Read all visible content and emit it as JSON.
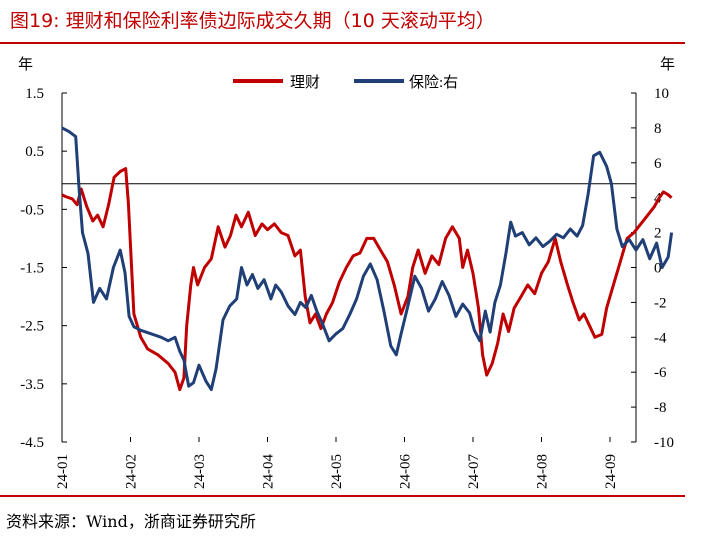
{
  "figure": {
    "title": "图19:  理财和保险利率债边际成交久期（10 天滚动平均）",
    "source": "资料来源：Wind，浙商证券研究所"
  },
  "chart_data": {
    "type": "line",
    "y_left_unit": "年",
    "y_right_unit": "年",
    "y_left_ticks": [
      "1.5",
      "0.5",
      "-0.5",
      "-1.5",
      "-2.5",
      "-3.5",
      "-4.5"
    ],
    "y_right_ticks": [
      "10",
      "8",
      "6",
      "4",
      "2",
      "0",
      "-2",
      "-4",
      "-6",
      "-8",
      "-10"
    ],
    "ylim_left": [
      -4.5,
      1.5
    ],
    "ylim_right": [
      -10,
      10
    ],
    "x_ticks": [
      "24-01",
      "24-02",
      "24-03",
      "24-04",
      "24-05",
      "24-06",
      "24-07",
      "24-08",
      "24-09"
    ],
    "legend_position": "top-center",
    "series": [
      {
        "name": "理财",
        "axis": "left",
        "color": "#c00000",
        "points": [
          [
            0.0,
            -0.25
          ],
          [
            0.05,
            -0.28
          ],
          [
            0.15,
            -0.32
          ],
          [
            0.22,
            -0.42
          ],
          [
            0.28,
            -0.15
          ],
          [
            0.36,
            -0.45
          ],
          [
            0.45,
            -0.7
          ],
          [
            0.52,
            -0.6
          ],
          [
            0.6,
            -0.8
          ],
          [
            0.68,
            -0.42
          ],
          [
            0.76,
            0.05
          ],
          [
            0.85,
            0.15
          ],
          [
            0.93,
            0.2
          ],
          [
            0.97,
            -0.4
          ],
          [
            1.05,
            -2.3
          ],
          [
            1.15,
            -2.7
          ],
          [
            1.25,
            -2.9
          ],
          [
            1.4,
            -3.0
          ],
          [
            1.55,
            -3.15
          ],
          [
            1.65,
            -3.3
          ],
          [
            1.72,
            -3.6
          ],
          [
            1.78,
            -3.4
          ],
          [
            1.82,
            -2.5
          ],
          [
            1.88,
            -1.8
          ],
          [
            1.92,
            -1.5
          ],
          [
            1.98,
            -1.8
          ],
          [
            2.08,
            -1.5
          ],
          [
            2.18,
            -1.35
          ],
          [
            2.28,
            -0.8
          ],
          [
            2.38,
            -1.15
          ],
          [
            2.46,
            -0.95
          ],
          [
            2.54,
            -0.6
          ],
          [
            2.62,
            -0.8
          ],
          [
            2.72,
            -0.55
          ],
          [
            2.82,
            -0.95
          ],
          [
            2.92,
            -0.75
          ],
          [
            3.0,
            -0.85
          ],
          [
            3.1,
            -0.75
          ],
          [
            3.2,
            -0.9
          ],
          [
            3.3,
            -0.95
          ],
          [
            3.4,
            -1.3
          ],
          [
            3.48,
            -1.2
          ],
          [
            3.55,
            -2.0
          ],
          [
            3.62,
            -2.45
          ],
          [
            3.7,
            -2.3
          ],
          [
            3.78,
            -2.55
          ],
          [
            3.86,
            -2.3
          ],
          [
            3.95,
            -2.1
          ],
          [
            4.05,
            -1.75
          ],
          [
            4.15,
            -1.5
          ],
          [
            4.25,
            -1.3
          ],
          [
            4.35,
            -1.25
          ],
          [
            4.45,
            -1.0
          ],
          [
            4.55,
            -1.0
          ],
          [
            4.65,
            -1.2
          ],
          [
            4.75,
            -1.4
          ],
          [
            4.85,
            -1.8
          ],
          [
            4.95,
            -2.3
          ],
          [
            5.05,
            -2.0
          ],
          [
            5.12,
            -1.5
          ],
          [
            5.2,
            -1.2
          ],
          [
            5.3,
            -1.6
          ],
          [
            5.4,
            -1.3
          ],
          [
            5.5,
            -1.45
          ],
          [
            5.6,
            -1.0
          ],
          [
            5.7,
            -0.8
          ],
          [
            5.8,
            -1.0
          ],
          [
            5.85,
            -1.5
          ],
          [
            5.92,
            -1.2
          ],
          [
            6.0,
            -1.6
          ],
          [
            6.08,
            -2.2
          ],
          [
            6.14,
            -3.0
          ],
          [
            6.2,
            -3.35
          ],
          [
            6.28,
            -3.15
          ],
          [
            6.36,
            -2.8
          ],
          [
            6.44,
            -2.3
          ],
          [
            6.52,
            -2.6
          ],
          [
            6.6,
            -2.2
          ],
          [
            6.7,
            -2.0
          ],
          [
            6.8,
            -1.8
          ],
          [
            6.9,
            -1.95
          ],
          [
            7.0,
            -1.6
          ],
          [
            7.1,
            -1.4
          ],
          [
            7.2,
            -1.0
          ],
          [
            7.28,
            -1.4
          ],
          [
            7.38,
            -1.8
          ],
          [
            7.46,
            -2.1
          ],
          [
            7.55,
            -2.4
          ],
          [
            7.62,
            -2.3
          ],
          [
            7.7,
            -2.5
          ],
          [
            7.78,
            -2.7
          ],
          [
            7.88,
            -2.65
          ],
          [
            7.95,
            -2.2
          ],
          [
            8.05,
            -1.8
          ],
          [
            8.15,
            -1.4
          ],
          [
            8.25,
            -1.0
          ],
          [
            8.35,
            -0.9
          ],
          [
            8.45,
            -0.75
          ],
          [
            8.55,
            -0.6
          ],
          [
            8.65,
            -0.45
          ],
          [
            8.72,
            -0.3
          ],
          [
            8.78,
            -0.2
          ],
          [
            8.85,
            -0.25
          ],
          [
            8.9,
            -0.3
          ]
        ]
      },
      {
        "name": "保险:右",
        "axis": "right",
        "color": "#1f3f76",
        "points": [
          [
            0.0,
            8.0
          ],
          [
            0.1,
            7.8
          ],
          [
            0.2,
            7.5
          ],
          [
            0.25,
            4.5
          ],
          [
            0.3,
            2.0
          ],
          [
            0.38,
            0.8
          ],
          [
            0.46,
            -2.0
          ],
          [
            0.55,
            -1.2
          ],
          [
            0.65,
            -1.8
          ],
          [
            0.75,
            0.0
          ],
          [
            0.85,
            1.0
          ],
          [
            0.92,
            -0.3
          ],
          [
            0.98,
            -2.8
          ],
          [
            1.05,
            -3.4
          ],
          [
            1.15,
            -3.6
          ],
          [
            1.3,
            -3.8
          ],
          [
            1.45,
            -4.0
          ],
          [
            1.55,
            -4.2
          ],
          [
            1.65,
            -4.0
          ],
          [
            1.72,
            -4.8
          ],
          [
            1.78,
            -5.3
          ],
          [
            1.85,
            -6.8
          ],
          [
            1.92,
            -6.6
          ],
          [
            2.0,
            -5.6
          ],
          [
            2.1,
            -6.5
          ],
          [
            2.18,
            -7.0
          ],
          [
            2.25,
            -5.8
          ],
          [
            2.35,
            -3.0
          ],
          [
            2.45,
            -2.2
          ],
          [
            2.55,
            -1.8
          ],
          [
            2.62,
            0.0
          ],
          [
            2.7,
            -1.0
          ],
          [
            2.78,
            -0.4
          ],
          [
            2.86,
            -1.2
          ],
          [
            2.95,
            -0.7
          ],
          [
            3.05,
            -1.8
          ],
          [
            3.12,
            -1.0
          ],
          [
            3.2,
            -1.4
          ],
          [
            3.3,
            -2.2
          ],
          [
            3.4,
            -2.7
          ],
          [
            3.48,
            -2.0
          ],
          [
            3.56,
            -2.3
          ],
          [
            3.64,
            -1.6
          ],
          [
            3.72,
            -2.5
          ],
          [
            3.8,
            -3.2
          ],
          [
            3.9,
            -4.2
          ],
          [
            4.0,
            -3.8
          ],
          [
            4.1,
            -3.5
          ],
          [
            4.2,
            -2.7
          ],
          [
            4.3,
            -1.8
          ],
          [
            4.4,
            -0.5
          ],
          [
            4.5,
            0.2
          ],
          [
            4.6,
            -0.7
          ],
          [
            4.7,
            -2.5
          ],
          [
            4.8,
            -4.5
          ],
          [
            4.88,
            -5.0
          ],
          [
            4.95,
            -3.8
          ],
          [
            5.05,
            -2.2
          ],
          [
            5.15,
            -0.5
          ],
          [
            5.25,
            -1.2
          ],
          [
            5.35,
            -2.5
          ],
          [
            5.45,
            -1.8
          ],
          [
            5.55,
            -0.8
          ],
          [
            5.65,
            -1.6
          ],
          [
            5.75,
            -2.8
          ],
          [
            5.85,
            -2.1
          ],
          [
            5.95,
            -2.6
          ],
          [
            6.02,
            -3.6
          ],
          [
            6.1,
            -4.2
          ],
          [
            6.18,
            -2.5
          ],
          [
            6.25,
            -3.7
          ],
          [
            6.32,
            -2.0
          ],
          [
            6.4,
            -1.0
          ],
          [
            6.48,
            0.8
          ],
          [
            6.55,
            2.6
          ],
          [
            6.62,
            1.8
          ],
          [
            6.72,
            2.0
          ],
          [
            6.82,
            1.3
          ],
          [
            6.92,
            1.7
          ],
          [
            7.02,
            1.2
          ],
          [
            7.12,
            1.5
          ],
          [
            7.22,
            1.9
          ],
          [
            7.32,
            1.7
          ],
          [
            7.42,
            2.2
          ],
          [
            7.52,
            1.8
          ],
          [
            7.6,
            2.4
          ],
          [
            7.68,
            4.2
          ],
          [
            7.76,
            6.4
          ],
          [
            7.85,
            6.6
          ],
          [
            7.95,
            5.8
          ],
          [
            8.02,
            4.8
          ],
          [
            8.1,
            2.2
          ],
          [
            8.18,
            1.2
          ],
          [
            8.28,
            1.6
          ],
          [
            8.38,
            1.0
          ],
          [
            8.48,
            1.6
          ],
          [
            8.58,
            0.5
          ],
          [
            8.68,
            1.4
          ],
          [
            8.76,
            0.0
          ],
          [
            8.85,
            0.6
          ],
          [
            8.9,
            2.0
          ]
        ]
      }
    ]
  }
}
